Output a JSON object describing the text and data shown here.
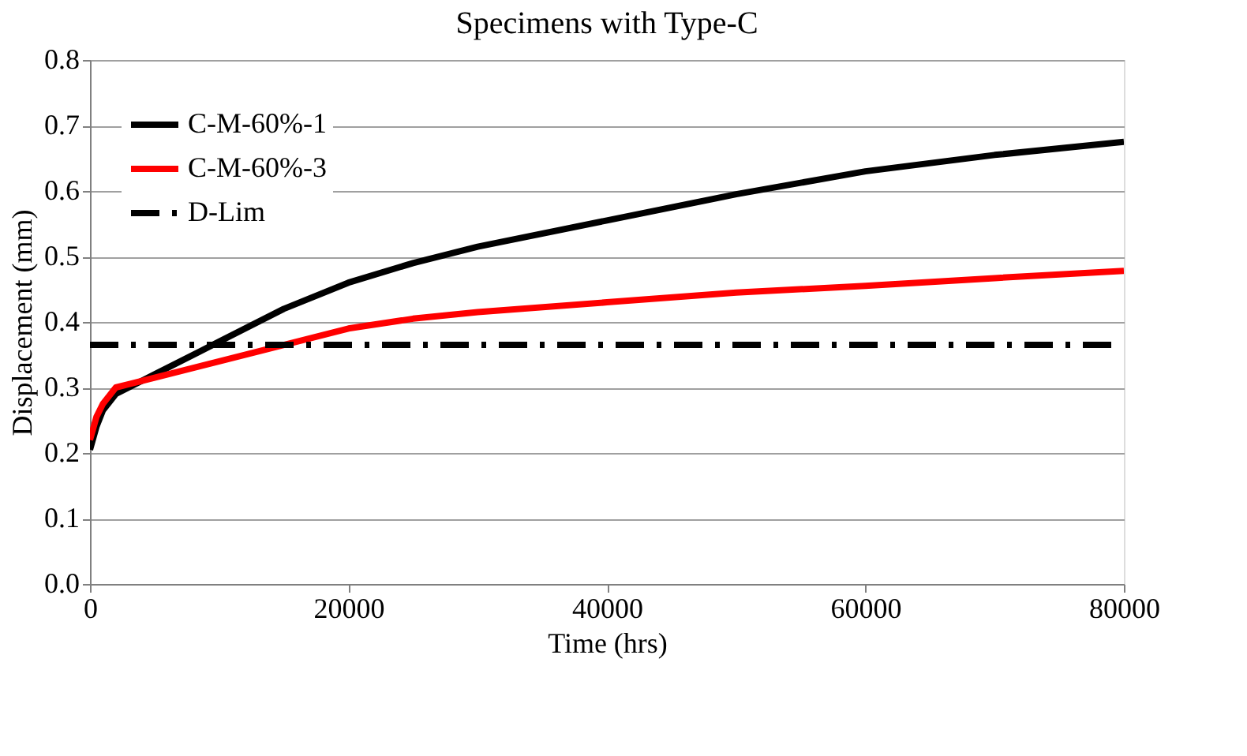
{
  "chart_data": {
    "type": "line",
    "title": "Specimens with Type-C",
    "xlabel": "Time (hrs)",
    "ylabel": "Displacement (mm)",
    "xlim": [
      0,
      80000
    ],
    "xticks": [
      0,
      20000,
      40000,
      60000,
      80000
    ],
    "ylim": [
      0,
      0.8
    ],
    "yticks": [
      {
        "value": 0,
        "label": "0.0"
      },
      0.1,
      0.2,
      0.3,
      0.4,
      0.5,
      0.6,
      0.7,
      0.8
    ],
    "grid": "y",
    "legend": "top left",
    "marker": "none",
    "line_style": "solid",
    "series": [
      {
        "name": "C-M-60%-1",
        "color": "#000000",
        "x": [
          0,
          500,
          1000,
          2000,
          3000,
          5000,
          10000,
          15000,
          20000,
          25000,
          30000,
          40000,
          50000,
          60000,
          70000,
          80000
        ],
        "values": [
          0.205,
          0.24,
          0.265,
          0.29,
          0.3,
          0.32,
          0.37,
          0.42,
          0.46,
          0.49,
          0.515,
          0.555,
          0.595,
          0.63,
          0.655,
          0.675
        ]
      },
      {
        "name": "C-M-60%-3",
        "color": "#ff0000",
        "x": [
          0,
          500,
          1000,
          2000,
          3000,
          5000,
          10000,
          15000,
          20000,
          25000,
          30000,
          40000,
          50000,
          60000,
          70000,
          80000
        ],
        "values": [
          0.22,
          0.255,
          0.275,
          0.3,
          0.305,
          0.315,
          0.34,
          0.365,
          0.39,
          0.405,
          0.415,
          0.43,
          0.445,
          0.455,
          0.467,
          0.478
        ]
      }
    ],
    "ref_lines": [
      {
        "axis": "y",
        "value": 0.365,
        "label": "D-Lim",
        "color": "#000000",
        "line_style": "dashdot"
      }
    ]
  }
}
